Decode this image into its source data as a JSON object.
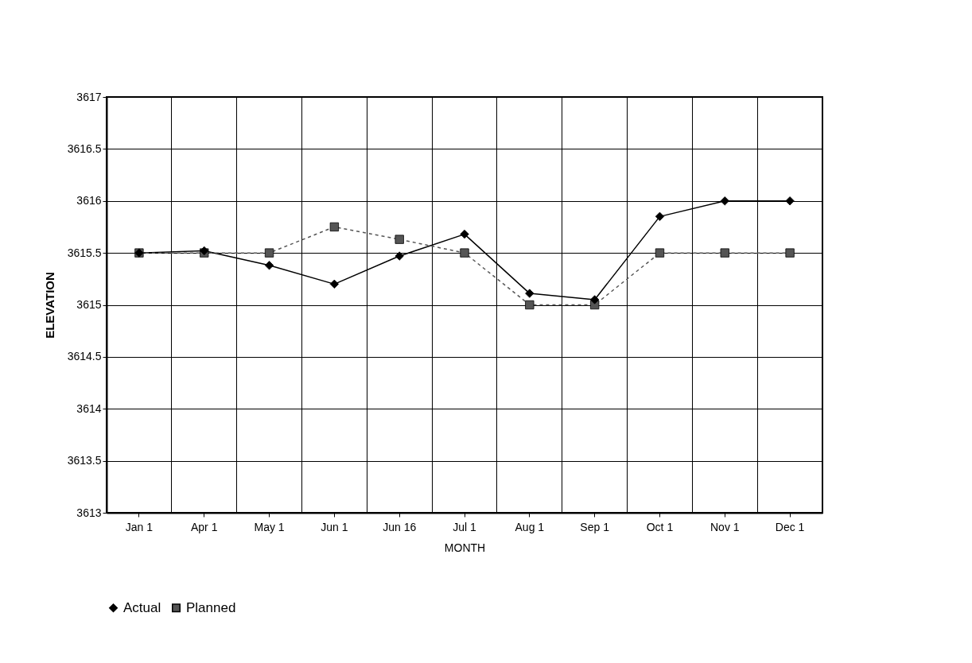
{
  "chart_data": {
    "type": "line",
    "xlabel": "MONTH",
    "ylabel": "ELEVATION",
    "categories": [
      "Jan 1",
      "Apr 1",
      "May 1",
      "Jun 1",
      "Jun 16",
      "Jul 1",
      "Aug 1",
      "Sep 1",
      "Oct 1",
      "Nov 1",
      "Dec 1"
    ],
    "series": [
      {
        "name": "Actual",
        "color": "#000000",
        "marker": "diamond",
        "line_style": "solid",
        "values": [
          3615.5,
          3615.52,
          3615.38,
          3615.2,
          3615.47,
          3615.68,
          3615.11,
          3615.05,
          3615.85,
          3616,
          3616
        ]
      },
      {
        "name": "Planned",
        "color": "#555555",
        "marker": "square",
        "line_style": "dashed",
        "values": [
          3615.5,
          3615.5,
          3615.5,
          3615.75,
          3615.63,
          3615.5,
          3615,
          3615,
          3615.5,
          3615.5,
          3615.5
        ]
      }
    ],
    "ylim": [
      3613,
      3617
    ],
    "yticks": [
      3613,
      3613.5,
      3614,
      3614.5,
      3615,
      3615.5,
      3616,
      3616.5,
      3617
    ],
    "grid": true,
    "legend": "bottom"
  }
}
